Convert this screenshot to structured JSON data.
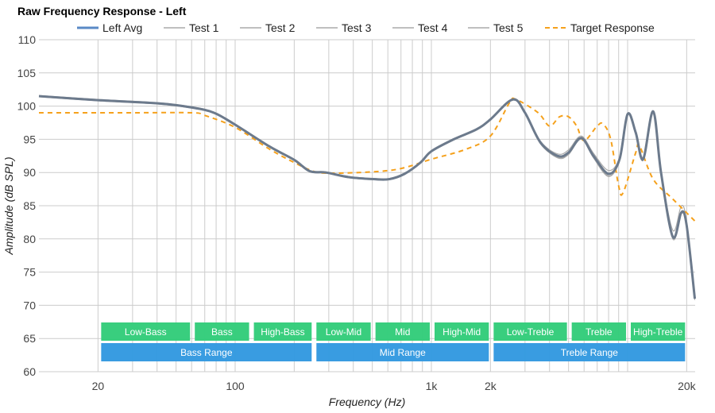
{
  "chart_data": {
    "type": "line",
    "title": "Raw Frequency Response - Left",
    "xlabel": "Frequency (Hz)",
    "ylabel": "Amplitude (dB SPL)",
    "xscale": "log",
    "xlim": [
      10,
      22000
    ],
    "ylim": [
      60,
      110
    ],
    "yticks": [
      60,
      65,
      70,
      75,
      80,
      85,
      90,
      95,
      100,
      105,
      110
    ],
    "xticks": [
      {
        "value": 20,
        "label": "20"
      },
      {
        "value": 100,
        "label": "100"
      },
      {
        "value": 1000,
        "label": "1k"
      },
      {
        "value": 2000,
        "label": "2k"
      },
      {
        "value": 20000,
        "label": "20k"
      }
    ],
    "minor_gridlines": [
      20,
      30,
      40,
      50,
      60,
      70,
      80,
      90,
      100,
      200,
      300,
      400,
      500,
      600,
      700,
      800,
      900,
      1000,
      2000,
      3000,
      4000,
      5000,
      6000,
      7000,
      8000,
      9000,
      10000,
      20000
    ],
    "grid": true,
    "legend_position": "top",
    "x": [
      10,
      20,
      41,
      60,
      78,
      100,
      150,
      200,
      240,
      290,
      380,
      510,
      610,
      730,
      880,
      1000,
      1300,
      1700,
      2000,
      2600,
      3000,
      3600,
      4400,
      5000,
      5800,
      6700,
      8000,
      9100,
      10000,
      11000,
      12000,
      13500,
      14800,
      17000,
      18800,
      20000,
      22000
    ],
    "series": [
      {
        "name": "Left Avg",
        "color": "#5a8ac6",
        "width": 3,
        "dash": "",
        "values": [
          101.5,
          100.9,
          100.4,
          99.8,
          99.0,
          97.2,
          93.9,
          91.9,
          90.2,
          90.0,
          89.3,
          89.0,
          89.0,
          89.8,
          91.5,
          93.2,
          95.0,
          96.5,
          98.0,
          101.0,
          99.0,
          94.5,
          92.5,
          93.0,
          95.2,
          92.5,
          89.8,
          92.0,
          98.8,
          96.0,
          92.0,
          99.2,
          90.0,
          80.3,
          84.0,
          82.0,
          71.0
        ]
      },
      {
        "name": "Test 1",
        "color": "#aaaaaa",
        "width": 1.2,
        "dash": "",
        "values": [
          101.6,
          101.0,
          100.5,
          99.9,
          99.1,
          97.3,
          94.0,
          92.0,
          90.3,
          90.1,
          89.4,
          89.1,
          89.1,
          89.9,
          91.6,
          93.3,
          95.1,
          96.6,
          98.1,
          101.1,
          99.1,
          94.7,
          92.8,
          93.4,
          95.5,
          92.9,
          90.3,
          92.3,
          98.9,
          96.2,
          92.3,
          99.3,
          90.3,
          81.3,
          85.0,
          82.5,
          71.5
        ]
      },
      {
        "name": "Test 2",
        "color": "#aaaaaa",
        "width": 1.2,
        "dash": "",
        "values": [
          101.4,
          100.8,
          100.3,
          99.7,
          98.9,
          97.1,
          93.8,
          91.8,
          90.1,
          89.9,
          89.2,
          88.9,
          88.9,
          89.7,
          91.4,
          93.1,
          94.9,
          96.4,
          97.9,
          100.9,
          98.9,
          94.3,
          92.3,
          92.8,
          95.0,
          92.3,
          89.5,
          91.8,
          98.7,
          95.8,
          91.8,
          99.1,
          89.8,
          80.0,
          83.8,
          81.8,
          70.8
        ]
      },
      {
        "name": "Test 3",
        "color": "#aaaaaa",
        "width": 1.2,
        "dash": "",
        "values": [
          101.5,
          100.9,
          100.4,
          99.8,
          99.0,
          97.2,
          93.9,
          91.9,
          90.2,
          90.0,
          89.3,
          89.0,
          89.0,
          89.8,
          91.5,
          93.2,
          95.0,
          96.5,
          98.0,
          101.0,
          99.0,
          94.4,
          92.2,
          92.7,
          95.1,
          92.2,
          89.4,
          91.9,
          98.8,
          96.0,
          92.0,
          99.2,
          90.0,
          80.2,
          83.9,
          81.9,
          71.0
        ]
      },
      {
        "name": "Test 4",
        "color": "#aaaaaa",
        "width": 1.2,
        "dash": "",
        "values": [
          101.5,
          100.9,
          100.4,
          99.8,
          99.0,
          97.2,
          93.9,
          91.9,
          90.2,
          90.0,
          89.3,
          89.0,
          89.0,
          89.8,
          91.5,
          93.2,
          95.0,
          96.5,
          98.0,
          101.0,
          99.0,
          94.6,
          92.6,
          93.1,
          95.3,
          92.6,
          89.9,
          92.1,
          98.8,
          96.1,
          92.1,
          99.2,
          90.1,
          80.5,
          84.2,
          82.1,
          71.2
        ]
      },
      {
        "name": "Test 5",
        "color": "#aaaaaa",
        "width": 1.2,
        "dash": "",
        "values": [
          101.5,
          100.9,
          100.4,
          99.8,
          99.0,
          97.2,
          93.9,
          91.9,
          90.2,
          90.0,
          89.3,
          89.0,
          89.0,
          89.8,
          91.5,
          93.2,
          95.0,
          96.5,
          98.0,
          101.0,
          99.0,
          94.5,
          92.4,
          92.9,
          95.2,
          92.4,
          89.7,
          92.0,
          98.8,
          96.0,
          92.0,
          99.2,
          90.0,
          80.3,
          84.0,
          82.0,
          71.0
        ]
      },
      {
        "name": "Target Response",
        "color": "#f5a11c",
        "width": 2,
        "dash": "6,5",
        "x": [
          10,
          30,
          60,
          70,
          100,
          150,
          200,
          250,
          300,
          500,
          700,
          1000,
          1500,
          2000,
          2500,
          2700,
          3500,
          4000,
          4500,
          5000,
          5500,
          6000,
          7000,
          7500,
          8200,
          9000,
          9500,
          11000,
          11500,
          13500,
          17000,
          22000
        ],
        "values": [
          99,
          99,
          99,
          98.6,
          96.8,
          93.5,
          91.5,
          90.2,
          89.9,
          90.1,
          90.6,
          92,
          93.5,
          95.5,
          100.5,
          101,
          99,
          97,
          98.4,
          98.4,
          97,
          94.8,
          97,
          97.3,
          95,
          88,
          87,
          93,
          94,
          89,
          86,
          82.7
        ]
      }
    ],
    "bands": [
      {
        "label": "Low-Bass",
        "from": 20,
        "to": 60,
        "row": 1,
        "color": "#33cc7a"
      },
      {
        "label": "Bass",
        "from": 60,
        "to": 120,
        "row": 1,
        "color": "#33cc7a"
      },
      {
        "label": "High-Bass",
        "from": 120,
        "to": 250,
        "row": 1,
        "color": "#33cc7a"
      },
      {
        "label": "Low-Mid",
        "from": 250,
        "to": 500,
        "row": 1,
        "color": "#33cc7a"
      },
      {
        "label": "Mid",
        "from": 500,
        "to": 1000,
        "row": 1,
        "color": "#33cc7a"
      },
      {
        "label": "High-Mid",
        "from": 1000,
        "to": 2000,
        "row": 1,
        "color": "#33cc7a"
      },
      {
        "label": "Low-Treble",
        "from": 2000,
        "to": 5000,
        "row": 1,
        "color": "#33cc7a"
      },
      {
        "label": "Treble",
        "from": 5000,
        "to": 10000,
        "row": 1,
        "color": "#33cc7a"
      },
      {
        "label": "High-Treble",
        "from": 10000,
        "to": 20000,
        "row": 1,
        "color": "#33cc7a"
      },
      {
        "label": "Bass Range",
        "from": 20,
        "to": 250,
        "row": 2,
        "color": "#3399e0"
      },
      {
        "label": "Mid Range",
        "from": 250,
        "to": 2000,
        "row": 2,
        "color": "#3399e0"
      },
      {
        "label": "Treble Range",
        "from": 2000,
        "to": 20000,
        "row": 2,
        "color": "#3399e0"
      }
    ]
  }
}
